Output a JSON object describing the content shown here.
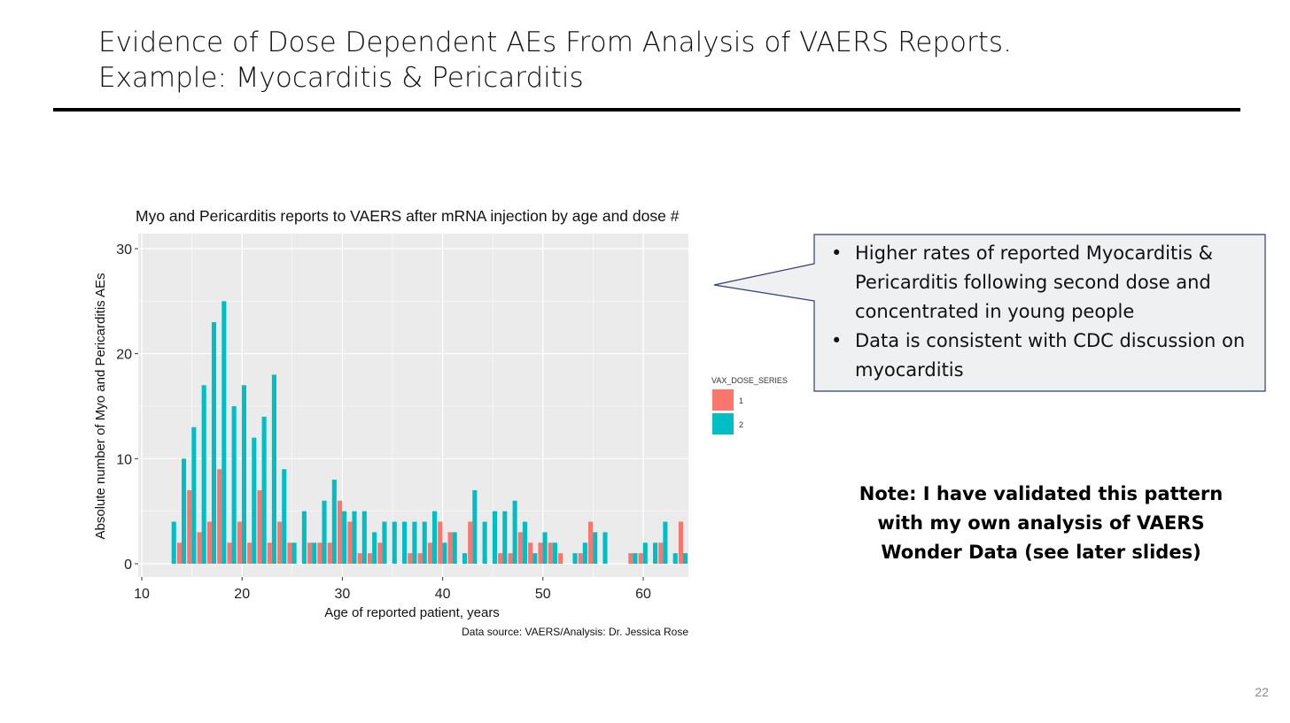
{
  "slide": {
    "title_line1": "Evidence of Dose Dependent AEs From Analysis of VAERS Reports.",
    "title_line2": "Example: Myocarditis & Pericarditis",
    "page_number": "22"
  },
  "callout": {
    "bullets": [
      "Higher rates of reported Myocarditis & Pericarditis following second dose and concentrated in young people",
      "Data is consistent with CDC discussion on myocarditis"
    ]
  },
  "note": {
    "line1": "Note: I have validated this pattern",
    "line2": "with my own analysis of VAERS",
    "line3": "Wonder Data (see later slides)"
  },
  "colors": {
    "dose1": "#F8766D",
    "dose2": "#00BFC4",
    "panel": "#EBEBEB",
    "grid": "#FFFFFF",
    "callout_fill": "#EFF0F2",
    "callout_border": "#2F3F6F"
  },
  "chart_data": {
    "type": "bar",
    "title": "Myo and Pericarditis reports to VAERS after mRNA injection by age and dose #",
    "xlabel": "Age of reported patient, years",
    "ylabel": "Absolute number of Myo and Pericarditis AEs",
    "caption": "Data source: VAERS/Analysis: Dr. Jessica Rose",
    "xlim": [
      10,
      63
    ],
    "ylim": [
      0,
      30
    ],
    "xticks": [
      10,
      20,
      30,
      40,
      50,
      60
    ],
    "yticks": [
      0,
      10,
      20,
      30
    ],
    "grid": true,
    "legend_title": "VAX_DOSE_SERIES",
    "legend_position": "right",
    "series": [
      {
        "name": "1",
        "points": [
          [
            14,
            2
          ],
          [
            15,
            7
          ],
          [
            16,
            3
          ],
          [
            17,
            4
          ],
          [
            18,
            9
          ],
          [
            19,
            2
          ],
          [
            20,
            4
          ],
          [
            21,
            2
          ],
          [
            22,
            7
          ],
          [
            23,
            2
          ],
          [
            24,
            4
          ],
          [
            25,
            2
          ],
          [
            27,
            2
          ],
          [
            28,
            2
          ],
          [
            29,
            2
          ],
          [
            30,
            6
          ],
          [
            31,
            4
          ],
          [
            32,
            1
          ],
          [
            33,
            1
          ],
          [
            34,
            2
          ],
          [
            37,
            1
          ],
          [
            38,
            1
          ],
          [
            39,
            2
          ],
          [
            40,
            4
          ],
          [
            41,
            3
          ],
          [
            43,
            4
          ],
          [
            46,
            1
          ],
          [
            47,
            1
          ],
          [
            48,
            3
          ],
          [
            49,
            2
          ],
          [
            50,
            2
          ],
          [
            51,
            2
          ],
          [
            52,
            1
          ],
          [
            54,
            1
          ],
          [
            55,
            4
          ],
          [
            59,
            1
          ],
          [
            60,
            1
          ],
          [
            62,
            2
          ],
          [
            64,
            4
          ]
        ]
      },
      {
        "name": "2",
        "points": [
          [
            13,
            4
          ],
          [
            14,
            10
          ],
          [
            15,
            13
          ],
          [
            16,
            17
          ],
          [
            17,
            23
          ],
          [
            18,
            25
          ],
          [
            19,
            15
          ],
          [
            20,
            17
          ],
          [
            21,
            12
          ],
          [
            22,
            14
          ],
          [
            23,
            18
          ],
          [
            24,
            9
          ],
          [
            25,
            2
          ],
          [
            26,
            5
          ],
          [
            27,
            2
          ],
          [
            28,
            6
          ],
          [
            29,
            8
          ],
          [
            30,
            5
          ],
          [
            31,
            5
          ],
          [
            32,
            5
          ],
          [
            33,
            3
          ],
          [
            34,
            4
          ],
          [
            35,
            4
          ],
          [
            36,
            4
          ],
          [
            37,
            4
          ],
          [
            38,
            4
          ],
          [
            39,
            5
          ],
          [
            40,
            2
          ],
          [
            41,
            3
          ],
          [
            42,
            1
          ],
          [
            43,
            7
          ],
          [
            44,
            4
          ],
          [
            45,
            5
          ],
          [
            46,
            5
          ],
          [
            47,
            6
          ],
          [
            48,
            4
          ],
          [
            49,
            1
          ],
          [
            50,
            3
          ],
          [
            51,
            2
          ],
          [
            53,
            1
          ],
          [
            54,
            2
          ],
          [
            55,
            3
          ],
          [
            56,
            3
          ],
          [
            59,
            1
          ],
          [
            60,
            2
          ],
          [
            61,
            2
          ],
          [
            62,
            4
          ],
          [
            63,
            1
          ],
          [
            64,
            1
          ]
        ]
      }
    ]
  }
}
